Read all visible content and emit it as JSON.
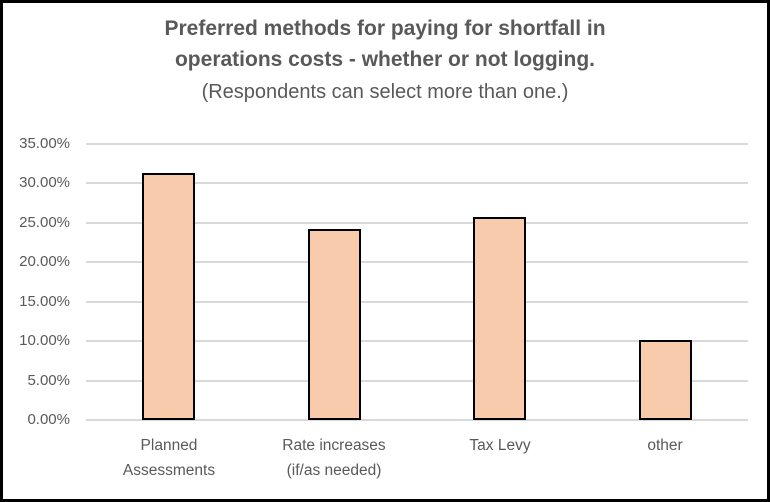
{
  "chart": {
    "title_line1": "Preferred methods for paying for shortfall in",
    "title_line2": "operations costs - whether or not logging.",
    "subtitle": "(Respondents can select more than one.)"
  },
  "chart_data": {
    "type": "bar",
    "title": "Preferred methods for paying for shortfall in operations costs - whether or not logging.",
    "subtitle": "(Respondents can select more than one.)",
    "categories": [
      "Planned Assessments",
      "Rate increases (if/as needed)",
      "Tax Levy",
      "other"
    ],
    "category_label_lines": [
      [
        "Planned",
        "Assessments"
      ],
      [
        "Rate increases",
        "(if/as needed)"
      ],
      [
        "Tax Levy"
      ],
      [
        "other"
      ]
    ],
    "values": [
      31.3,
      24.2,
      25.8,
      10.1
    ],
    "xlabel": "",
    "ylabel": "",
    "ylim": [
      0,
      35
    ],
    "y_step": 5,
    "y_ticks": [
      "0.00%",
      "5.00%",
      "10.00%",
      "15.00%",
      "20.00%",
      "25.00%",
      "30.00%",
      "35.00%"
    ],
    "grid": "horizontal",
    "legend": "none",
    "colors": {
      "bar_fill": "#F8CBAD",
      "bar_border": "#000000",
      "gridline": "#D9D9D9",
      "text": "#595959"
    }
  }
}
